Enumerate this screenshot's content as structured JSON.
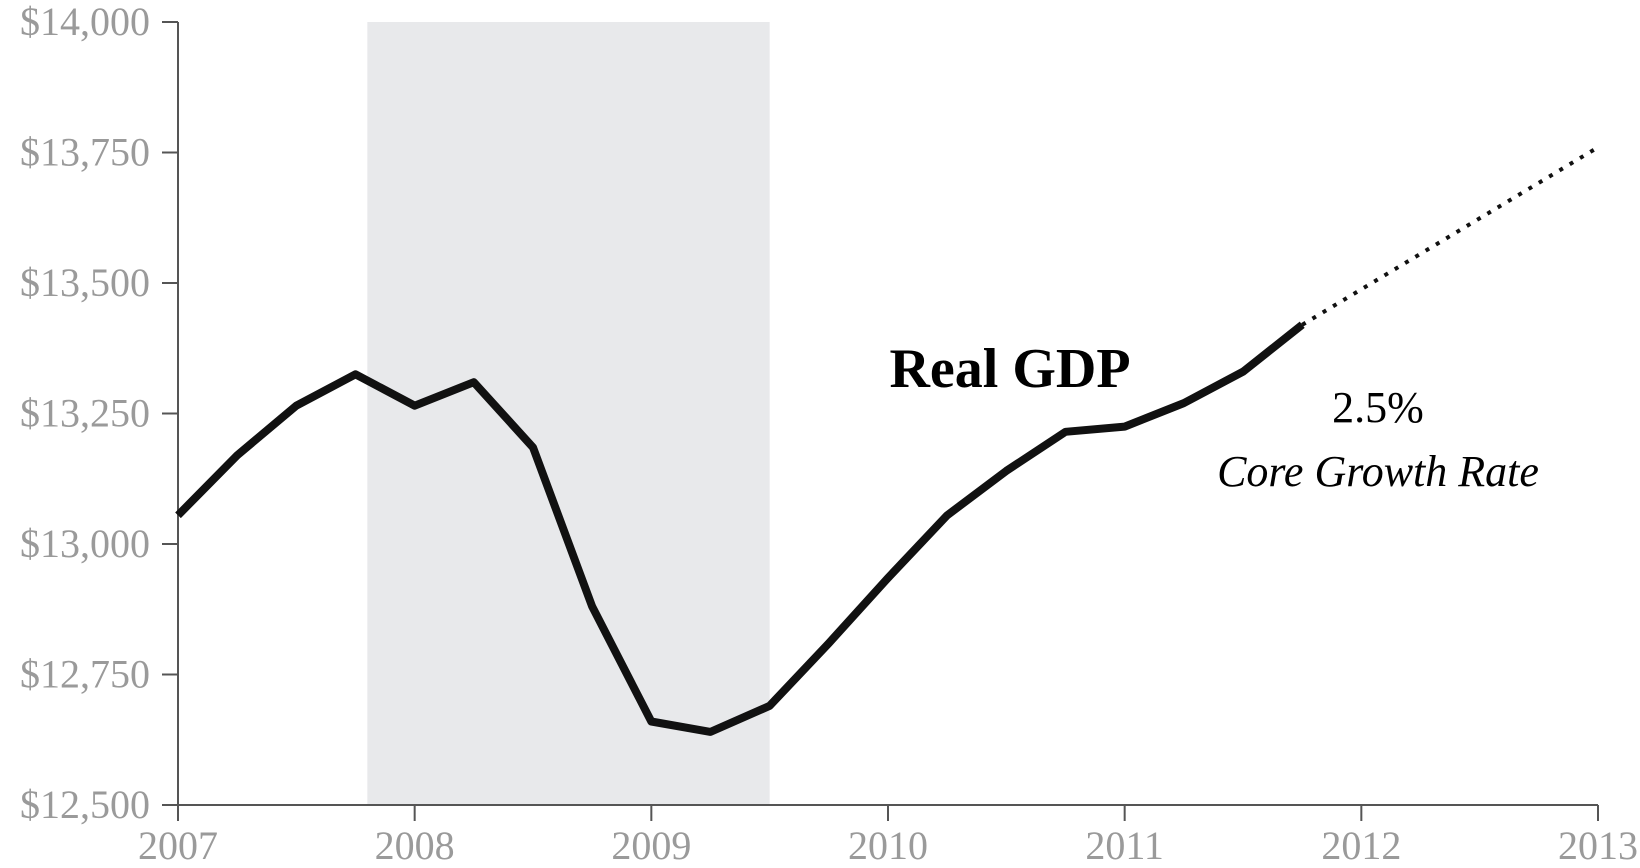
{
  "chart_data": {
    "type": "line",
    "title": "",
    "xlabel": "",
    "ylabel": "",
    "xlim": [
      2007,
      2013
    ],
    "ylim": [
      12500,
      14000
    ],
    "x_ticks": [
      2007,
      2008,
      2009,
      2010,
      2011,
      2012,
      2013
    ],
    "x_tick_labels": [
      "2007",
      "2008",
      "2009",
      "2010",
      "2011",
      "2012",
      "2013"
    ],
    "y_ticks": [
      12500,
      12750,
      13000,
      13250,
      13500,
      13750,
      14000
    ],
    "y_tick_labels": [
      "$12,500",
      "$12,750",
      "$13,000",
      "$13,250",
      "$13,500",
      "$13,750",
      "$14,000"
    ],
    "grid": false,
    "recession_band": {
      "x_start": 2007.8,
      "x_end": 2009.5,
      "color": "#e8e9eb"
    },
    "series": [
      {
        "name": "Real GDP",
        "color": "#111111",
        "points": [
          [
            2007.0,
            13055
          ],
          [
            2007.25,
            13170
          ],
          [
            2007.5,
            13265
          ],
          [
            2007.75,
            13325
          ],
          [
            2008.0,
            13265
          ],
          [
            2008.25,
            13310
          ],
          [
            2008.5,
            13185
          ],
          [
            2008.75,
            12880
          ],
          [
            2009.0,
            12660
          ],
          [
            2009.25,
            12640
          ],
          [
            2009.5,
            12690
          ],
          [
            2009.75,
            12810
          ],
          [
            2010.0,
            12935
          ],
          [
            2010.25,
            13055
          ],
          [
            2010.5,
            13140
          ],
          [
            2010.75,
            13215
          ],
          [
            2011.0,
            13225
          ],
          [
            2011.25,
            13270
          ],
          [
            2011.5,
            13330
          ],
          [
            2011.75,
            13420
          ]
        ]
      },
      {
        "name": "Core Growth Rate",
        "style": "dotted",
        "color": "#111111",
        "points": [
          [
            2011.75,
            13420
          ],
          [
            2013.0,
            13760
          ]
        ]
      }
    ],
    "annotations": {
      "series_label": "Real GDP",
      "rate_value": "2.5%",
      "rate_label": "Core Growth Rate"
    }
  }
}
